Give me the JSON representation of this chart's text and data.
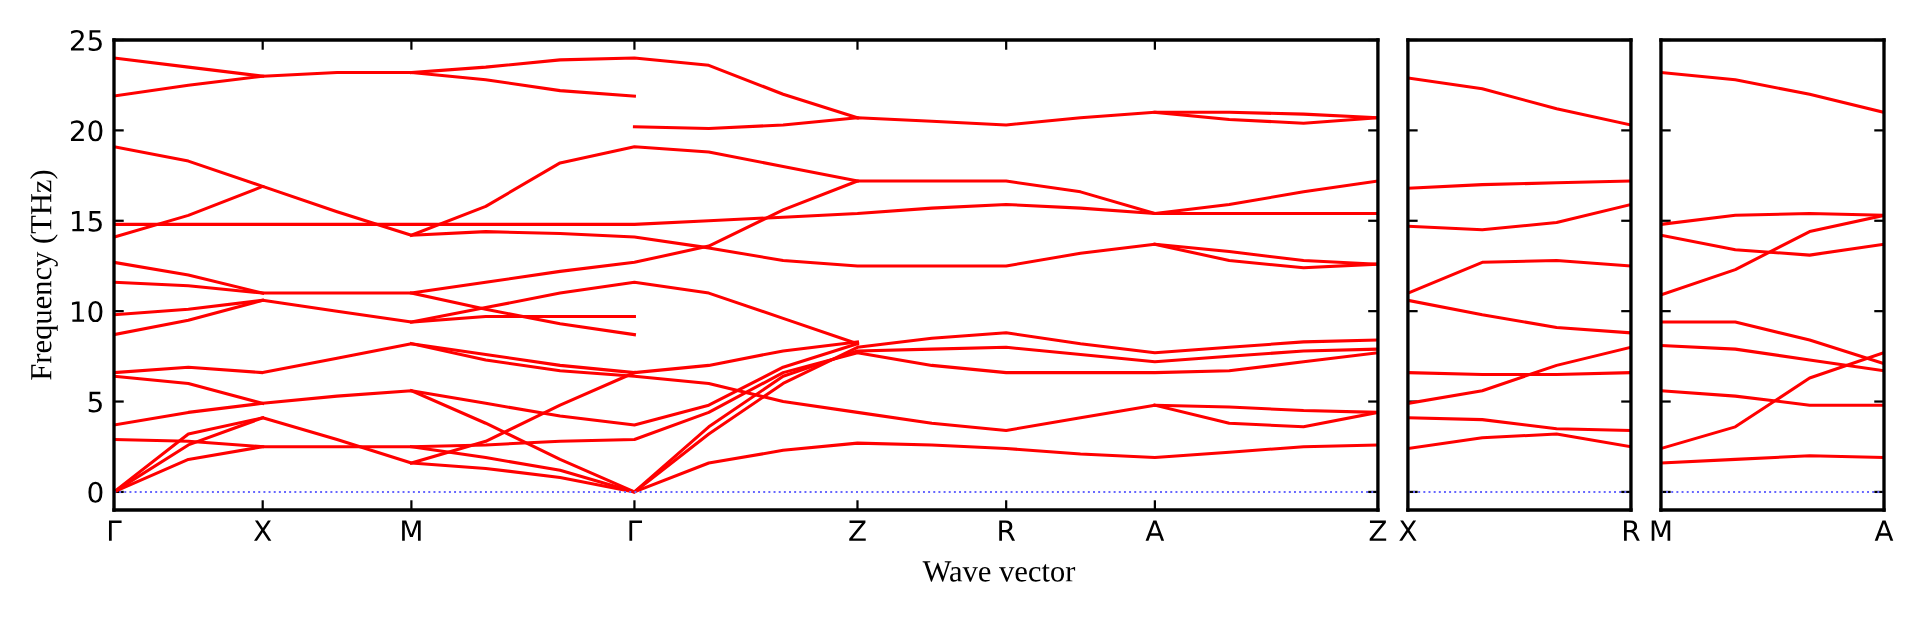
{
  "chart_data": [
    {
      "type": "line",
      "xlabel": "Wave vector",
      "ylabel": "Frequency (THz)",
      "ylim": [
        -1,
        25
      ],
      "categories": [
        "Γ",
        null,
        "X",
        null,
        "M",
        null,
        null,
        "Γ",
        null,
        null,
        "Z",
        null,
        "R",
        null,
        "A",
        null,
        null,
        "Z"
      ],
      "yticks": [
        0,
        5,
        10,
        15,
        20,
        25
      ],
      "ref_lines": [
        {
          "axis": "y",
          "value": 0,
          "color": "#6666ff",
          "line_style": "dotted"
        }
      ],
      "series": [
        {
          "color": "#ff0000",
          "values": [
            0,
            1.8,
            2.5,
            2.5,
            2.5,
            2.6,
            2.8,
            2.9,
            4.4,
            6.6,
            7.7,
            7.0,
            6.6,
            6.6,
            6.6,
            6.7,
            7.2,
            7.7
          ]
        },
        {
          "color": "#ff0000",
          "values": [
            2.9,
            2.8,
            2.5,
            null,
            2.5,
            1.9,
            1.2,
            0,
            3.6,
            6.4,
            7.8,
            7.9,
            8.0,
            7.6,
            7.2,
            7.5,
            7.8,
            7.9
          ]
        },
        {
          "color": "#ff0000",
          "values": [
            0,
            2.6,
            4.1,
            2.9,
            1.6,
            1.3,
            0.8,
            0,
            1.6,
            2.3,
            2.7,
            2.6,
            2.4,
            2.1,
            1.9,
            2.2,
            2.5,
            2.6
          ]
        },
        {
          "color": "#ff0000",
          "values": [
            0,
            3.2,
            4.1,
            null,
            1.6,
            2.8,
            4.8,
            6.6,
            null,
            null,
            null,
            null,
            null,
            null,
            null,
            null,
            null,
            null
          ]
        },
        {
          "color": "#ff0000",
          "values": [
            3.7,
            4.4,
            4.9,
            5.3,
            5.6,
            4.9,
            4.2,
            3.7,
            4.8,
            6.9,
            8.2,
            null,
            null,
            null,
            null,
            null,
            null,
            null
          ]
        },
        {
          "color": "#ff0000",
          "values": [
            6.4,
            6.0,
            4.9,
            null,
            5.6,
            3.8,
            1.8,
            0,
            3.2,
            6.0,
            8.0,
            8.5,
            8.8,
            8.2,
            7.7,
            8.0,
            8.3,
            8.4
          ]
        },
        {
          "color": "#ff0000",
          "values": [
            6.6,
            6.9,
            6.6,
            7.4,
            8.2,
            7.6,
            7.0,
            6.6,
            7.0,
            7.8,
            8.3,
            null,
            null,
            null,
            null,
            null,
            null,
            null
          ]
        },
        {
          "color": "#ff0000",
          "values": [
            null,
            null,
            null,
            null,
            8.2,
            7.3,
            6.7,
            6.4,
            6.0,
            5.0,
            4.4,
            3.8,
            3.4,
            4.1,
            4.8,
            4.7,
            4.5,
            4.4
          ]
        },
        {
          "color": "#ff0000",
          "values": [
            8.7,
            9.5,
            10.6,
            10.0,
            9.4,
            10.2,
            11.0,
            11.6,
            11.0,
            9.6,
            8.2,
            null,
            null,
            null,
            null,
            null,
            null,
            null
          ]
        },
        {
          "color": "#ff0000",
          "values": [
            9.8,
            10.1,
            10.6,
            null,
            9.4,
            9.7,
            9.7,
            9.7,
            null,
            null,
            null,
            null,
            null,
            null,
            null,
            null,
            null,
            null
          ]
        },
        {
          "color": "#ff0000",
          "values": [
            11.6,
            11.4,
            11.0,
            11.0,
            11.0,
            11.6,
            12.2,
            12.7,
            13.6,
            15.6,
            17.2,
            17.2,
            17.2,
            16.6,
            15.4,
            15.9,
            16.6,
            17.2
          ]
        },
        {
          "color": "#ff0000",
          "values": [
            12.7,
            12.0,
            11.0,
            null,
            11.0,
            10.1,
            9.3,
            8.7,
            null,
            null,
            null,
            null,
            null,
            null,
            null,
            null,
            null,
            null
          ]
        },
        {
          "color": "#ff0000",
          "values": [
            14.8,
            14.8,
            14.8,
            14.8,
            14.8,
            14.8,
            14.8,
            14.8,
            15.0,
            15.2,
            15.4,
            15.7,
            15.9,
            15.7,
            15.4,
            15.4,
            15.4,
            15.4
          ]
        },
        {
          "color": "#ff0000",
          "values": [
            14.1,
            15.3,
            16.9,
            15.5,
            14.2,
            14.4,
            14.3,
            14.1,
            13.5,
            12.8,
            12.5,
            12.5,
            12.5,
            13.2,
            13.7,
            13.3,
            12.8,
            12.6
          ]
        },
        {
          "color": "#ff0000",
          "values": [
            19.1,
            18.3,
            16.9,
            null,
            14.2,
            15.8,
            18.2,
            19.1,
            18.8,
            18.0,
            17.2,
            null,
            null,
            null,
            null,
            null,
            null,
            null
          ]
        },
        {
          "color": "#ff0000",
          "values": [
            21.9,
            22.5,
            23.0,
            23.2,
            23.2,
            22.8,
            22.2,
            21.9,
            null,
            null,
            null,
            null,
            null,
            null,
            null,
            null,
            null,
            null
          ]
        },
        {
          "color": "#ff0000",
          "values": [
            24.0,
            23.5,
            23.0,
            null,
            23.2,
            23.5,
            23.9,
            24.0,
            23.6,
            22.0,
            20.7,
            null,
            null,
            null,
            21.0,
            20.6,
            20.4,
            20.7
          ]
        },
        {
          "color": "#ff0000",
          "values": [
            null,
            null,
            null,
            null,
            null,
            null,
            null,
            20.2,
            20.1,
            20.3,
            20.7,
            20.5,
            20.3,
            20.7,
            21.0,
            21.0,
            20.9,
            20.7
          ]
        },
        {
          "color": "#ff0000",
          "values": [
            null,
            null,
            null,
            null,
            null,
            null,
            null,
            null,
            null,
            null,
            null,
            null,
            null,
            null,
            4.8,
            3.8,
            3.6,
            4.4
          ]
        },
        {
          "color": "#ff0000",
          "values": [
            null,
            null,
            null,
            null,
            null,
            null,
            null,
            null,
            null,
            null,
            null,
            null,
            null,
            null,
            13.7,
            12.8,
            12.4,
            12.6
          ]
        }
      ]
    },
    {
      "type": "line",
      "ylim": [
        -1,
        25
      ],
      "tick_labels": "x",
      "categories": [
        "X",
        null,
        null,
        "R"
      ],
      "yticks": [
        0,
        5,
        10,
        15,
        20,
        25
      ],
      "ref_lines": [
        {
          "axis": "y",
          "value": 0,
          "color": "#6666ff",
          "line_style": "dotted"
        }
      ],
      "series": [
        {
          "color": "#ff0000",
          "values": [
            22.9,
            22.3,
            21.2,
            20.3
          ]
        },
        {
          "color": "#ff0000",
          "values": [
            16.8,
            17.0,
            17.1,
            17.2
          ]
        },
        {
          "color": "#ff0000",
          "values": [
            14.7,
            14.5,
            14.9,
            15.9
          ]
        },
        {
          "color": "#ff0000",
          "values": [
            11.0,
            12.7,
            12.8,
            12.5
          ]
        },
        {
          "color": "#ff0000",
          "values": [
            10.6,
            9.8,
            9.1,
            8.8
          ]
        },
        {
          "color": "#ff0000",
          "values": [
            6.6,
            6.5,
            6.5,
            6.6
          ]
        },
        {
          "color": "#ff0000",
          "values": [
            4.9,
            5.6,
            7.0,
            8.0
          ]
        },
        {
          "color": "#ff0000",
          "values": [
            4.1,
            4.0,
            3.5,
            3.4
          ]
        },
        {
          "color": "#ff0000",
          "values": [
            2.4,
            3.0,
            3.2,
            2.5
          ]
        }
      ]
    },
    {
      "type": "line",
      "ylim": [
        -1,
        25
      ],
      "tick_labels": "x",
      "categories": [
        "M",
        null,
        null,
        "A"
      ],
      "yticks": [
        0,
        5,
        10,
        15,
        20,
        25
      ],
      "ref_lines": [
        {
          "axis": "y",
          "value": 0,
          "color": "#6666ff",
          "line_style": "dotted"
        }
      ],
      "series": [
        {
          "color": "#ff0000",
          "values": [
            23.2,
            22.8,
            22.0,
            21.0
          ]
        },
        {
          "color": "#ff0000",
          "values": [
            14.8,
            15.3,
            15.4,
            15.3
          ]
        },
        {
          "color": "#ff0000",
          "values": [
            14.2,
            13.4,
            13.1,
            13.7
          ]
        },
        {
          "color": "#ff0000",
          "values": [
            10.9,
            12.3,
            14.4,
            15.3
          ]
        },
        {
          "color": "#ff0000",
          "values": [
            9.4,
            9.4,
            8.4,
            7.1
          ]
        },
        {
          "color": "#ff0000",
          "values": [
            8.1,
            7.9,
            7.3,
            6.7
          ]
        },
        {
          "color": "#ff0000",
          "values": [
            5.6,
            5.3,
            4.8,
            4.8
          ]
        },
        {
          "color": "#ff0000",
          "values": [
            2.4,
            3.6,
            6.3,
            7.7
          ]
        },
        {
          "color": "#ff0000",
          "values": [
            1.6,
            1.8,
            2.0,
            1.9
          ]
        }
      ]
    }
  ]
}
